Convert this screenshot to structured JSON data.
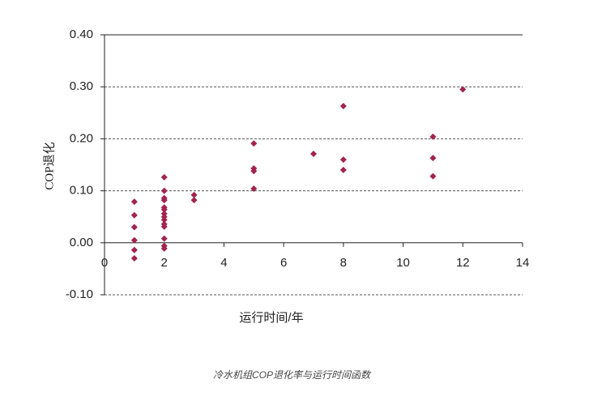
{
  "chart_data": {
    "type": "scatter",
    "y_label": "COP退化",
    "x_label": "运行时间/年",
    "caption": "冷水机组COP退化率与运行时间函数",
    "series": [
      {
        "color": "#a3234f",
        "x": [
          1,
          1,
          1,
          1,
          1,
          1,
          2,
          2,
          2,
          2,
          2,
          2,
          2,
          2,
          2,
          2,
          2,
          2,
          2,
          2,
          3,
          3,
          5,
          5,
          5,
          5,
          7,
          8,
          8,
          8,
          11,
          11,
          11,
          12
        ],
        "values": [
          0.079,
          0.053,
          0.03,
          0.005,
          -0.014,
          -0.03,
          0.126,
          0.1,
          0.086,
          0.082,
          0.068,
          0.064,
          0.056,
          0.05,
          0.044,
          0.036,
          0.031,
          0.008,
          -0.006,
          -0.011,
          0.092,
          0.082,
          0.191,
          0.143,
          0.138,
          0.104,
          0.171,
          0.263,
          0.16,
          0.14,
          0.204,
          0.163,
          0.128,
          0.295
        ]
      }
    ],
    "xlim": [
      0,
      14
    ],
    "xticks": [
      0,
      2,
      4,
      6,
      8,
      10,
      12,
      14
    ],
    "ylim": [
      -0.1,
      0.4
    ],
    "yticks": [
      {
        "value": -0.1,
        "label": "-0.10"
      },
      {
        "value": 0,
        "label": "0.00"
      },
      {
        "value": 0.1,
        "label": "0.10"
      },
      {
        "value": 0.2,
        "label": "0.20"
      },
      {
        "value": 0.3,
        "label": "0.30"
      },
      {
        "value": 0.4,
        "label": "0.40"
      }
    ],
    "grid": true
  }
}
